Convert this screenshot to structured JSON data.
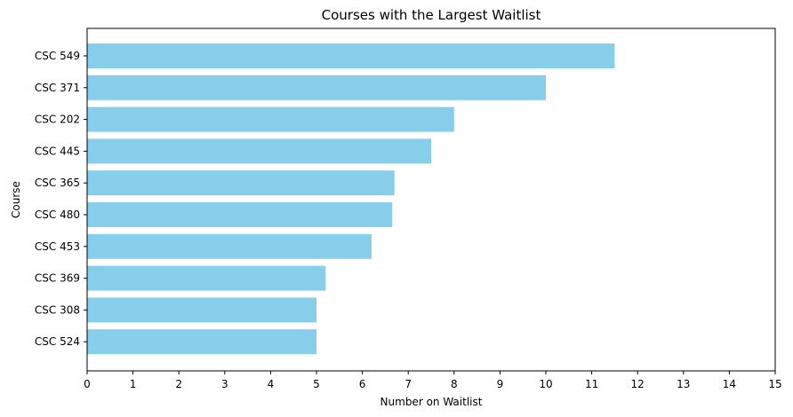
{
  "chart_data": {
    "type": "bar",
    "orientation": "horizontal",
    "title": "Courses with the Largest Waitlist",
    "xlabel": "Number on Waitlist",
    "ylabel": "Course",
    "xlim": [
      0,
      15
    ],
    "xticks": [
      0,
      1,
      2,
      3,
      4,
      5,
      6,
      7,
      8,
      9,
      10,
      11,
      12,
      13,
      14,
      15
    ],
    "grid": false,
    "bar_color": "#87CEEB",
    "categories": [
      "CSC 549",
      "CSC 371",
      "CSC 202",
      "CSC 445",
      "CSC 365",
      "CSC 480",
      "CSC 453",
      "CSC 369",
      "CSC 308",
      "CSC 524"
    ],
    "values": [
      11.5,
      10,
      8,
      7.5,
      6.7,
      6.65,
      6.2,
      5.2,
      5,
      5
    ]
  }
}
